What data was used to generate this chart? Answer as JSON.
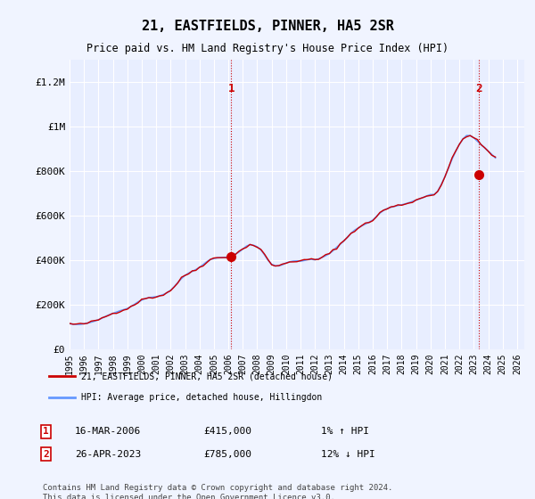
{
  "title": "21, EASTFIELDS, PINNER, HA5 2SR",
  "subtitle": "Price paid vs. HM Land Registry's House Price Index (HPI)",
  "ylabel_ticks": [
    "£0",
    "£200K",
    "£400K",
    "£600K",
    "£800K",
    "£1M",
    "£1.2M"
  ],
  "ytick_vals": [
    0,
    200000,
    400000,
    600000,
    800000,
    1000000,
    1200000
  ],
  "ylim": [
    0,
    1300000
  ],
  "xlim_start": 1995.0,
  "xlim_end": 2026.5,
  "x_years": [
    1995,
    1996,
    1997,
    1998,
    1999,
    2000,
    2001,
    2002,
    2003,
    2004,
    2005,
    2006,
    2007,
    2008,
    2009,
    2010,
    2011,
    2012,
    2013,
    2014,
    2015,
    2016,
    2017,
    2018,
    2019,
    2020,
    2021,
    2022,
    2023,
    2024,
    2025,
    2026
  ],
  "bg_color": "#f0f4ff",
  "plot_bg": "#e8eeff",
  "grid_color": "#ffffff",
  "hpi_color": "#6699ff",
  "price_color": "#cc0000",
  "sale1_x": 2006.21,
  "sale1_y": 415000,
  "sale2_x": 2023.32,
  "sale2_y": 785000,
  "legend_label1": "21, EASTFIELDS, PINNER, HA5 2SR (detached house)",
  "legend_label2": "HPI: Average price, detached house, Hillingdon",
  "info1_num": "1",
  "info1_date": "16-MAR-2006",
  "info1_price": "£415,000",
  "info1_hpi": "1% ↑ HPI",
  "info2_num": "2",
  "info2_date": "26-APR-2023",
  "info2_price": "£785,000",
  "info2_hpi": "12% ↓ HPI",
  "footnote": "Contains HM Land Registry data © Crown copyright and database right 2024.\nThis data is licensed under the Open Government Licence v3.0.",
  "hpi_data_x": [
    1995.0,
    1995.25,
    1995.5,
    1995.75,
    1996.0,
    1996.25,
    1996.5,
    1996.75,
    1997.0,
    1997.25,
    1997.5,
    1997.75,
    1998.0,
    1998.25,
    1998.5,
    1998.75,
    1999.0,
    1999.25,
    1999.5,
    1999.75,
    2000.0,
    2000.25,
    2000.5,
    2000.75,
    2001.0,
    2001.25,
    2001.5,
    2001.75,
    2002.0,
    2002.25,
    2002.5,
    2002.75,
    2003.0,
    2003.25,
    2003.5,
    2003.75,
    2004.0,
    2004.25,
    2004.5,
    2004.75,
    2005.0,
    2005.25,
    2005.5,
    2005.75,
    2006.0,
    2006.25,
    2006.5,
    2006.75,
    2007.0,
    2007.25,
    2007.5,
    2007.75,
    2008.0,
    2008.25,
    2008.5,
    2008.75,
    2009.0,
    2009.25,
    2009.5,
    2009.75,
    2010.0,
    2010.25,
    2010.5,
    2010.75,
    2011.0,
    2011.25,
    2011.5,
    2011.75,
    2012.0,
    2012.25,
    2012.5,
    2012.75,
    2013.0,
    2013.25,
    2013.5,
    2013.75,
    2014.0,
    2014.25,
    2014.5,
    2014.75,
    2015.0,
    2015.25,
    2015.5,
    2015.75,
    2016.0,
    2016.25,
    2016.5,
    2016.75,
    2017.0,
    2017.25,
    2017.5,
    2017.75,
    2018.0,
    2018.25,
    2018.5,
    2018.75,
    2019.0,
    2019.25,
    2019.5,
    2019.75,
    2020.0,
    2020.25,
    2020.5,
    2020.75,
    2021.0,
    2021.25,
    2021.5,
    2021.75,
    2022.0,
    2022.25,
    2022.5,
    2022.75,
    2023.0,
    2023.25,
    2023.5,
    2023.75,
    2024.0,
    2024.25,
    2024.5
  ],
  "hpi_data_y": [
    115000,
    113000,
    112000,
    112000,
    115000,
    118000,
    122000,
    127000,
    133000,
    140000,
    148000,
    155000,
    161000,
    167000,
    173000,
    178000,
    183000,
    192000,
    202000,
    213000,
    221000,
    228000,
    232000,
    234000,
    236000,
    240000,
    246000,
    254000,
    265000,
    281000,
    300000,
    318000,
    332000,
    342000,
    350000,
    358000,
    368000,
    380000,
    393000,
    403000,
    408000,
    411000,
    412000,
    413000,
    415000,
    420000,
    428000,
    438000,
    450000,
    463000,
    470000,
    467000,
    460000,
    447000,
    425000,
    400000,
    382000,
    375000,
    375000,
    380000,
    388000,
    393000,
    396000,
    397000,
    396000,
    399000,
    403000,
    404000,
    402000,
    406000,
    413000,
    421000,
    430000,
    443000,
    458000,
    472000,
    487000,
    504000,
    521000,
    535000,
    545000,
    555000,
    563000,
    571000,
    580000,
    596000,
    612000,
    624000,
    632000,
    638000,
    642000,
    646000,
    649000,
    653000,
    658000,
    664000,
    670000,
    676000,
    682000,
    689000,
    695000,
    695000,
    710000,
    740000,
    775000,
    815000,
    855000,
    890000,
    920000,
    945000,
    960000,
    960000,
    950000,
    935000,
    920000,
    905000,
    890000,
    875000,
    860000
  ]
}
